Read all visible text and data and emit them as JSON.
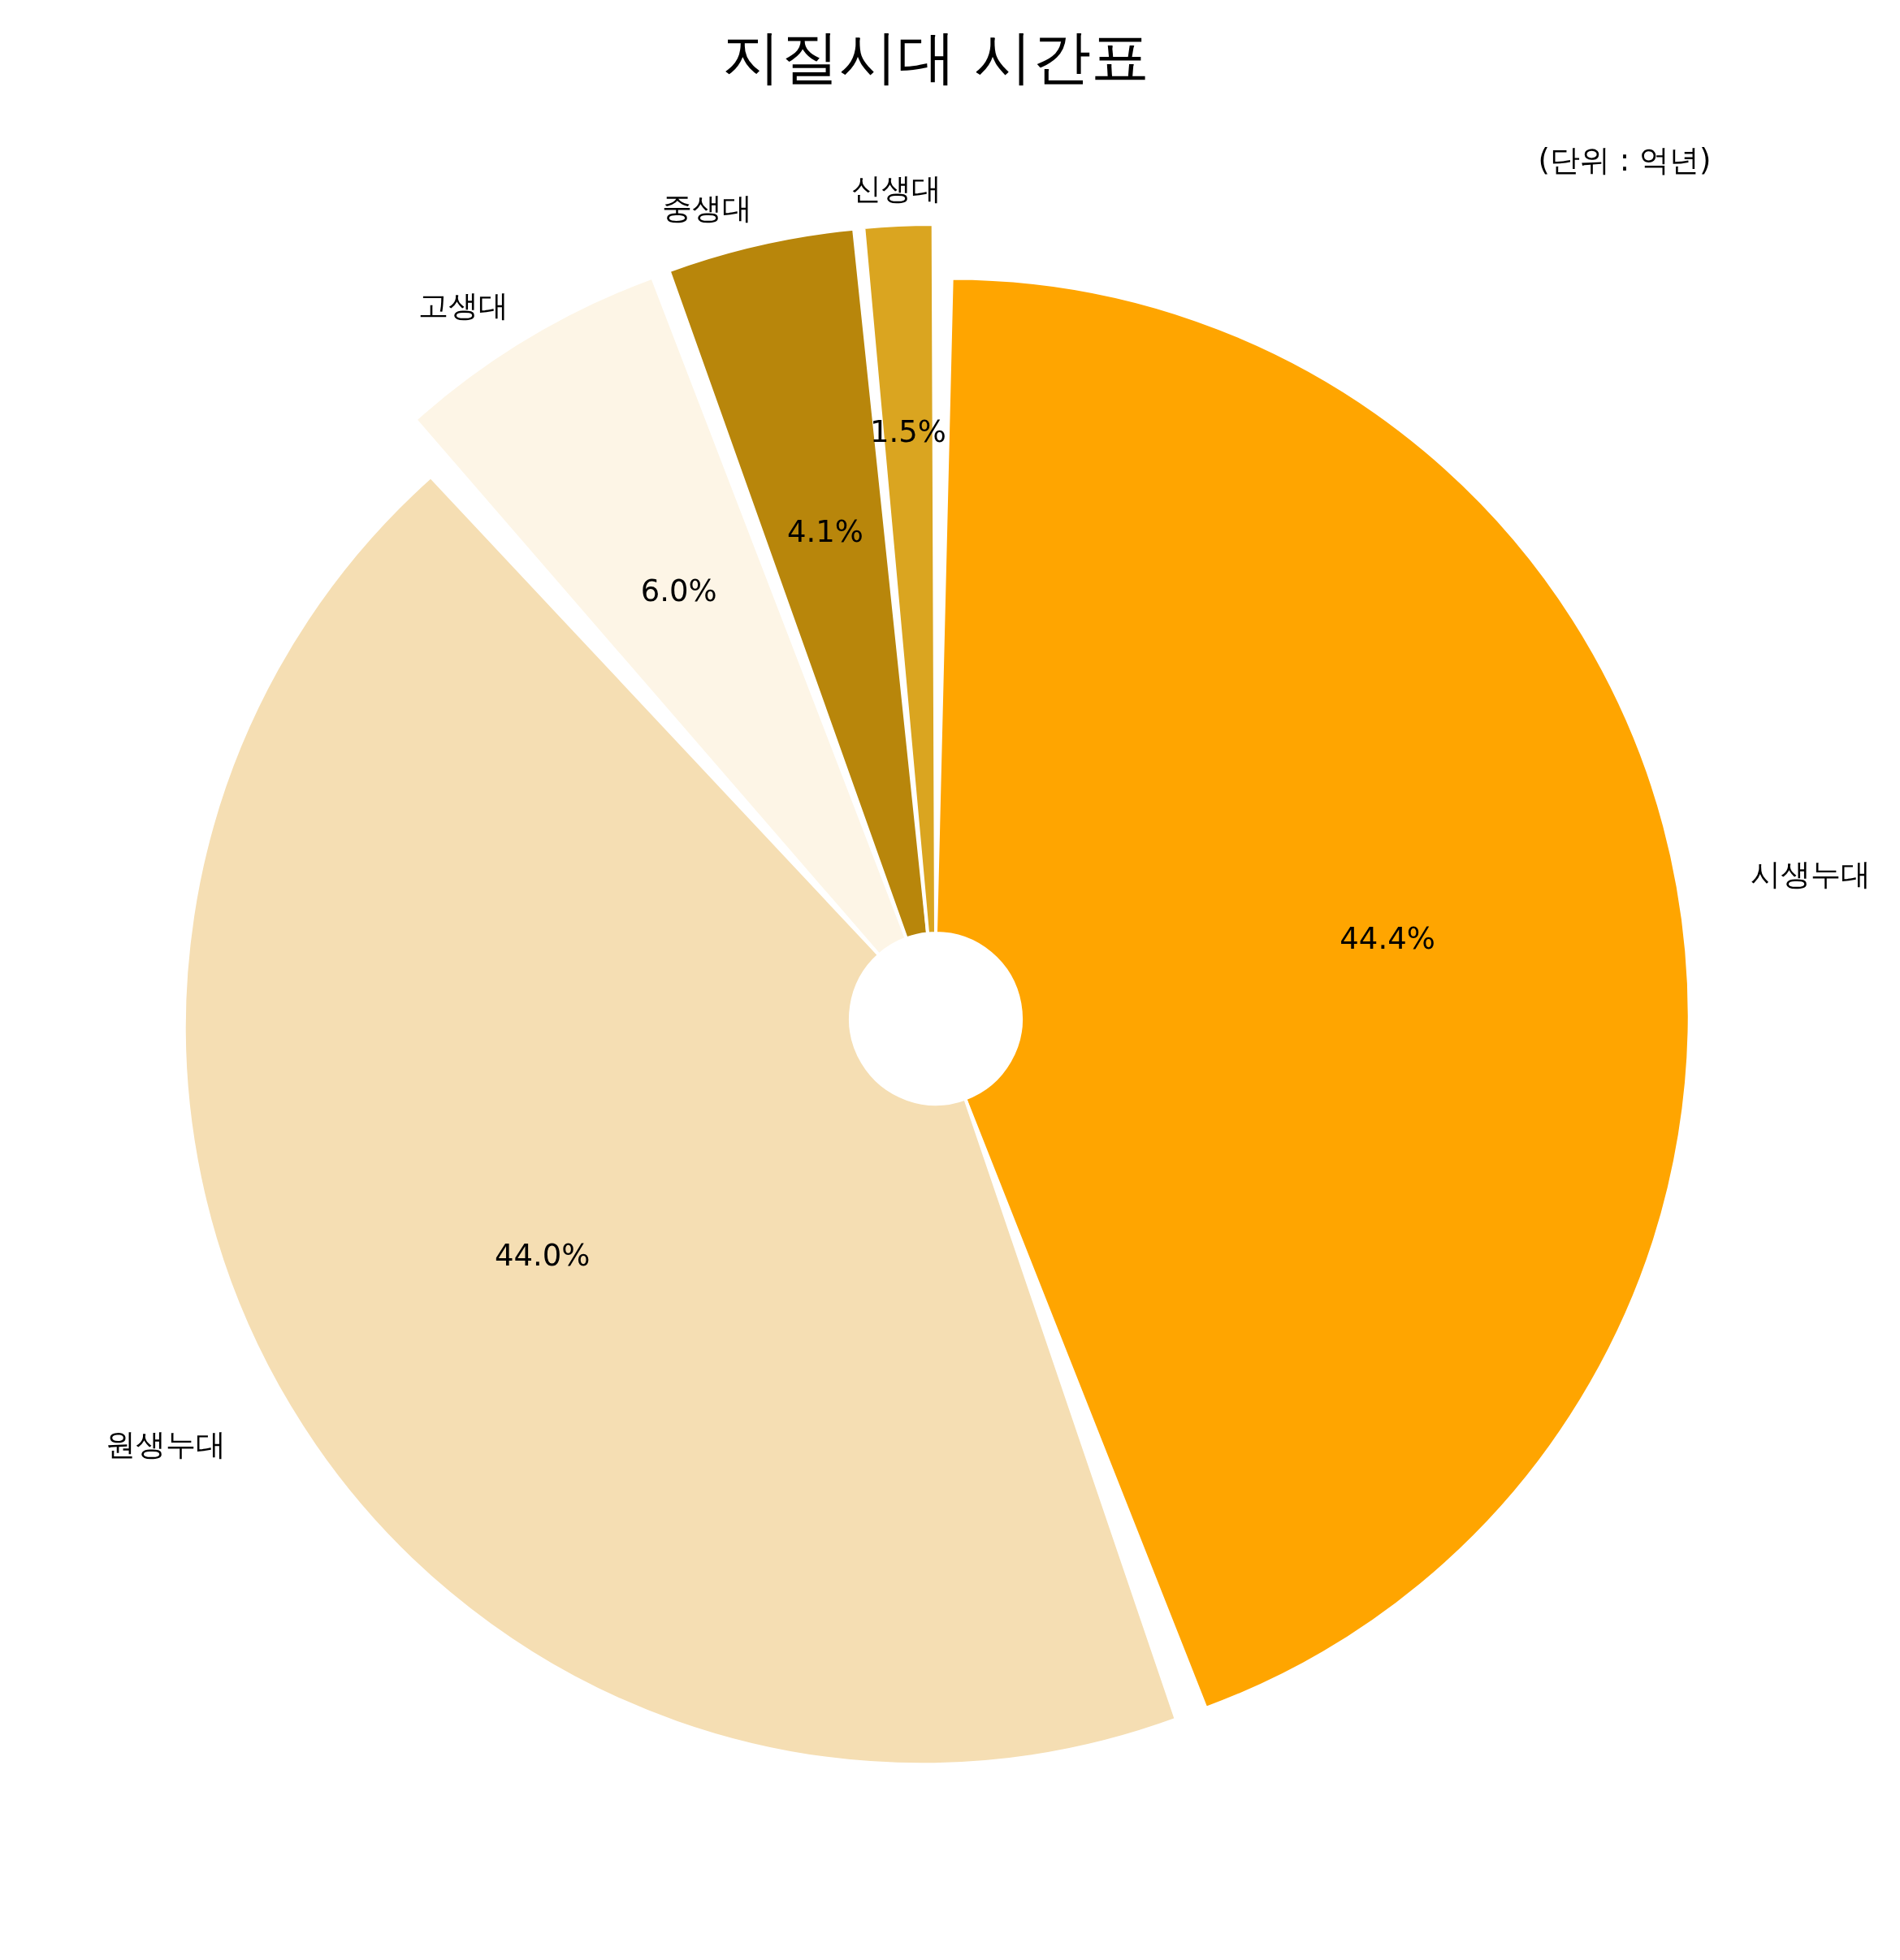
{
  "chart_data": {
    "type": "pie",
    "title": "지질시대 시간표",
    "categories": [
      "시생누대",
      "원생누대",
      "고생대",
      "중생대",
      "신생대"
    ],
    "values": [
      44.4,
      44.0,
      6.0,
      4.1,
      1.5
    ],
    "colors": [
      "#ffa500",
      "#f5deb3",
      "#fdf5e6",
      "#b8860b",
      "#daa520"
    ],
    "value_labels": [
      "44.4%",
      "44.0%",
      "6.0%",
      "4.1%",
      "1.5%"
    ],
    "annotations": [
      "(단위 : 억년)"
    ]
  }
}
